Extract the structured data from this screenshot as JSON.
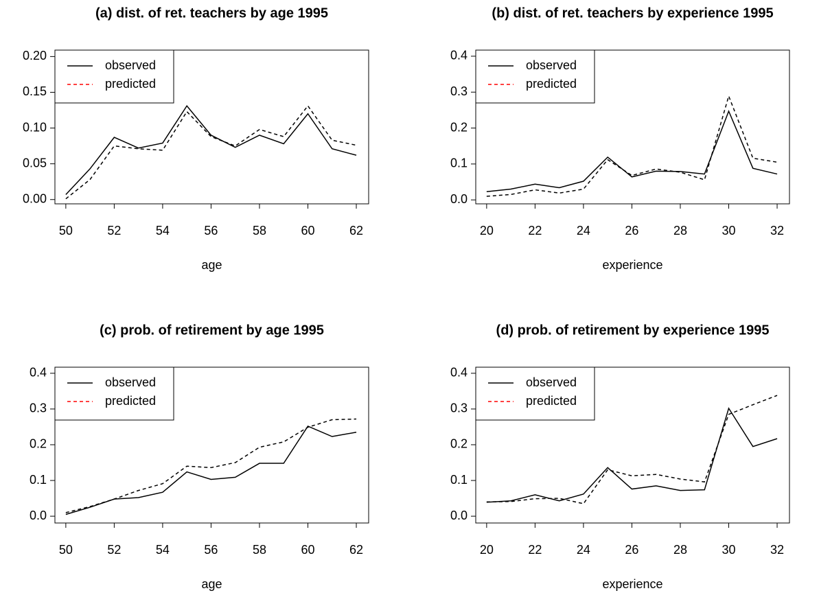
{
  "chart_data": [
    {
      "type": "line",
      "title": "(a) dist. of ret. teachers by age 1995",
      "xlabel": "age",
      "x": [
        50,
        51,
        52,
        53,
        54,
        55,
        56,
        57,
        58,
        59,
        60,
        61,
        62
      ],
      "series": [
        {
          "name": "observed",
          "color": "#000000",
          "legend_color": "#000000",
          "linestyle": "solid",
          "values": [
            0.007,
            0.043,
            0.087,
            0.072,
            0.079,
            0.131,
            0.09,
            0.073,
            0.09,
            0.078,
            0.12,
            0.071,
            0.062
          ]
        },
        {
          "name": "predicted",
          "color": "#000000",
          "legend_color": "#ff0000",
          "linestyle": "dashed",
          "values": [
            0.001,
            0.028,
            0.075,
            0.071,
            0.069,
            0.123,
            0.088,
            0.075,
            0.098,
            0.088,
            0.131,
            0.083,
            0.076
          ]
        }
      ],
      "xlim": [
        49.55,
        62.51
      ],
      "xticks": [
        50,
        52,
        54,
        56,
        58,
        60,
        62
      ],
      "ylim": [
        -0.006,
        0.209
      ],
      "yticks": [
        {
          "value": 0,
          "label": "0.00"
        },
        0.05,
        {
          "value": 0.1,
          "label": "0.10"
        },
        0.15,
        {
          "value": 0.2,
          "label": "0.20"
        }
      ],
      "legend": "upper left"
    },
    {
      "type": "line",
      "title": "(b) dist. of ret. teachers by experience 1995",
      "xlabel": "experience",
      "x": [
        20,
        21,
        22,
        23,
        24,
        25,
        26,
        27,
        28,
        29,
        30,
        31,
        32
      ],
      "series": [
        {
          "name": "observed",
          "color": "#000000",
          "legend_color": "#000000",
          "linestyle": "solid",
          "values": [
            0.023,
            0.03,
            0.044,
            0.034,
            0.052,
            0.119,
            0.064,
            0.08,
            0.079,
            0.072,
            0.247,
            0.088,
            0.072
          ]
        },
        {
          "name": "predicted",
          "color": "#000000",
          "legend_color": "#ff0000",
          "linestyle": "dashed",
          "values": [
            0.01,
            0.015,
            0.028,
            0.019,
            0.03,
            0.112,
            0.068,
            0.086,
            0.077,
            0.056,
            0.289,
            0.116,
            0.105
          ]
        }
      ],
      "xlim": [
        19.55,
        32.51
      ],
      "xticks": [
        20,
        22,
        24,
        26,
        28,
        30,
        32
      ],
      "ylim": [
        -0.011,
        0.417
      ],
      "yticks": [
        {
          "value": 0,
          "label": "0.0"
        },
        0.1,
        0.2,
        0.3,
        0.4
      ],
      "legend": "upper left"
    },
    {
      "type": "line",
      "title": "(c) prob. of retirement by age 1995",
      "xlabel": "age",
      "x": [
        50,
        51,
        52,
        53,
        54,
        55,
        56,
        57,
        58,
        59,
        60,
        61,
        62
      ],
      "series": [
        {
          "name": "observed",
          "color": "#000000",
          "legend_color": "#000000",
          "linestyle": "solid",
          "values": [
            0.005,
            0.025,
            0.048,
            0.052,
            0.067,
            0.124,
            0.103,
            0.109,
            0.148,
            0.148,
            0.252,
            0.223,
            0.235
          ]
        },
        {
          "name": "predicted",
          "color": "#000000",
          "legend_color": "#ff0000",
          "linestyle": "dashed",
          "values": [
            0.01,
            0.027,
            0.048,
            0.072,
            0.091,
            0.14,
            0.136,
            0.15,
            0.193,
            0.208,
            0.249,
            0.27,
            0.272
          ]
        }
      ],
      "xlim": [
        49.55,
        62.51
      ],
      "xticks": [
        50,
        52,
        54,
        56,
        58,
        60,
        62
      ],
      "ylim": [
        -0.019,
        0.417
      ],
      "yticks": [
        {
          "value": 0,
          "label": "0.0"
        },
        0.1,
        0.2,
        0.3,
        0.4
      ],
      "legend": "upper left"
    },
    {
      "type": "line",
      "title": "(d) prob. of retirement by experience 1995",
      "xlabel": "experience",
      "x": [
        20,
        21,
        22,
        23,
        24,
        25,
        26,
        27,
        28,
        29,
        30,
        31,
        32
      ],
      "series": [
        {
          "name": "observed",
          "color": "#000000",
          "legend_color": "#000000",
          "linestyle": "solid",
          "values": [
            0.039,
            0.043,
            0.06,
            0.043,
            0.062,
            0.136,
            0.076,
            0.085,
            0.072,
            0.074,
            0.302,
            0.195,
            0.217
          ]
        },
        {
          "name": "predicted",
          "color": "#000000",
          "legend_color": "#ff0000",
          "linestyle": "dashed",
          "values": [
            0.04,
            0.041,
            0.049,
            0.05,
            0.035,
            0.13,
            0.113,
            0.117,
            0.104,
            0.096,
            0.285,
            0.312,
            0.338
          ]
        }
      ],
      "xlim": [
        19.55,
        32.51
      ],
      "xticks": [
        20,
        22,
        24,
        26,
        28,
        30,
        32
      ],
      "ylim": [
        -0.019,
        0.417
      ],
      "yticks": [
        {
          "value": 0,
          "label": "0.0"
        },
        0.1,
        0.2,
        0.3,
        0.4
      ],
      "legend": "upper left"
    }
  ]
}
